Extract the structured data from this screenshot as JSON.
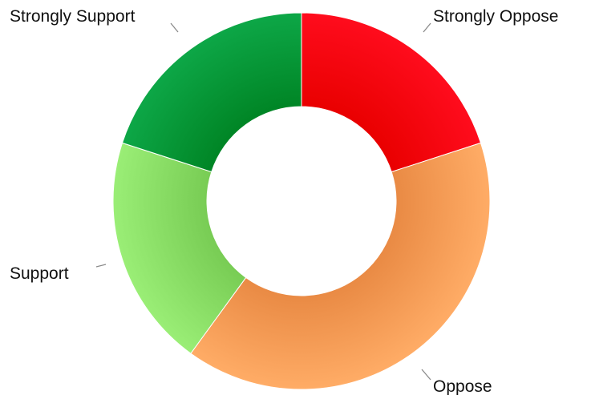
{
  "chart_data": {
    "type": "pie",
    "subtype": "donut",
    "title": "",
    "legend": "none",
    "slices": [
      {
        "label": "Strongly Oppose",
        "value": 20,
        "color": "#ff0011"
      },
      {
        "label": "Oppose",
        "value": 40,
        "color": "#ffa05a"
      },
      {
        "label": "Support",
        "value": 20,
        "color": "#8ee26a"
      },
      {
        "label": "Strongly Support",
        "value": 20,
        "color": "#019b3b"
      }
    ]
  }
}
